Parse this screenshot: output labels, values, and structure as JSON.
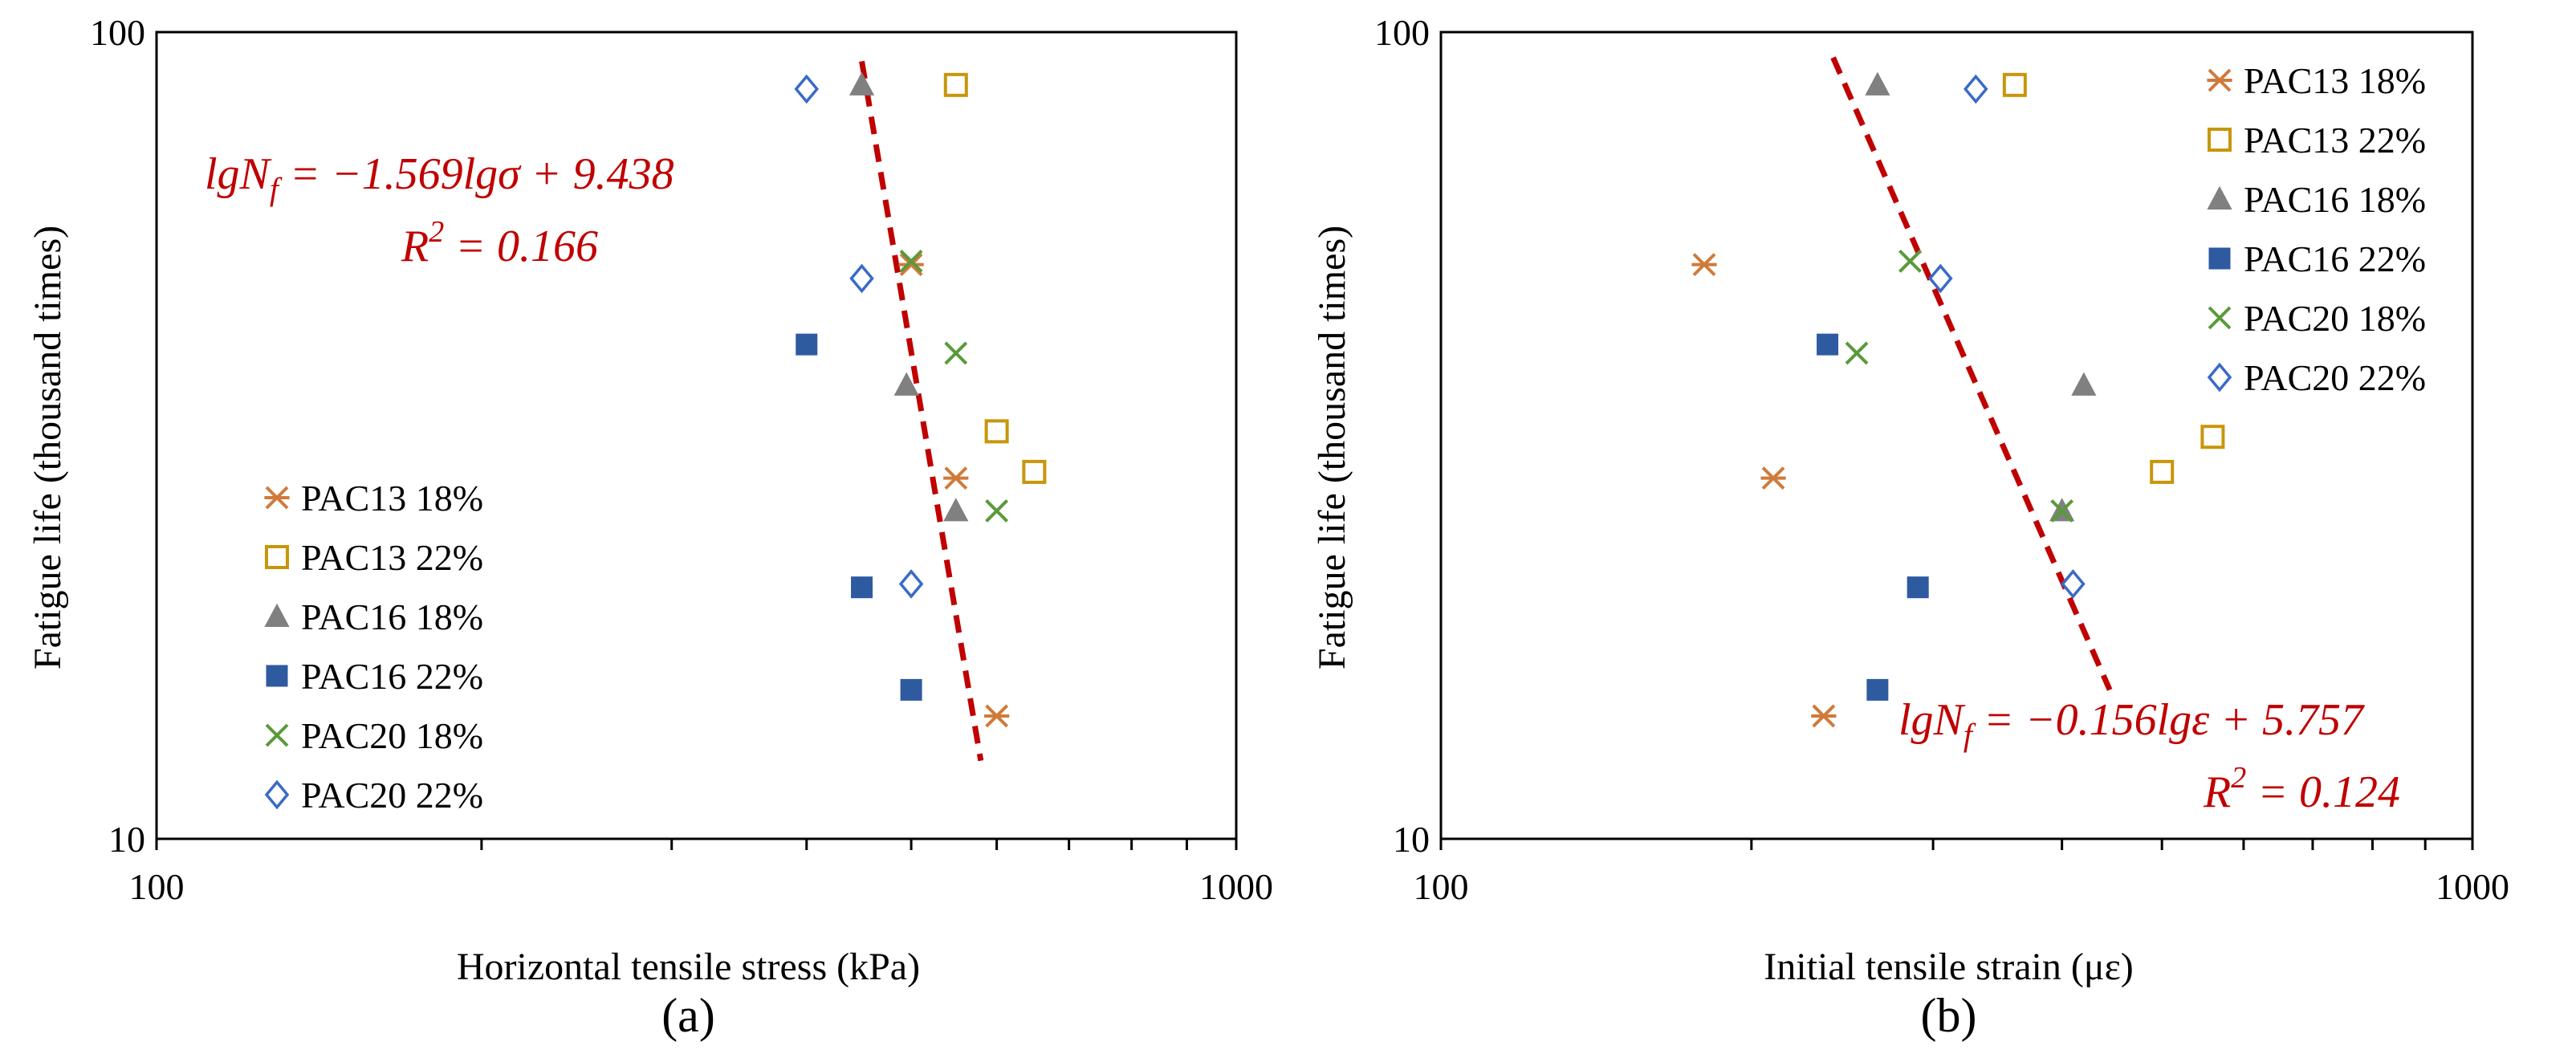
{
  "figure": {
    "panels": [
      "(a)",
      "(b)"
    ]
  },
  "series_styles": [
    {
      "name": "PAC13 18%",
      "marker": "asterisk",
      "color": "#d07a3a"
    },
    {
      "name": "PAC13 22%",
      "marker": "square-open",
      "color": "#c8960a"
    },
    {
      "name": "PAC16 18%",
      "marker": "triangle",
      "color": "#808080"
    },
    {
      "name": "PAC16 22%",
      "marker": "square",
      "color": "#2e5aa0"
    },
    {
      "name": "PAC20 18%",
      "marker": "x",
      "color": "#5a9a3a"
    },
    {
      "name": "PAC20 22%",
      "marker": "diamond-open",
      "color": "#3a6ac8"
    }
  ],
  "trend_color": "#c00000",
  "chart_data": [
    {
      "type": "scatter",
      "panel_label": "(a)",
      "xlabel": "Horizontal tensile stress (kPa)",
      "ylabel": "Fatigue life (thousand times)",
      "xscale": "log",
      "yscale": "log",
      "xlim": [
        100,
        1000
      ],
      "ylim": [
        10,
        100
      ],
      "x_ticks": [
        "100",
        "1000"
      ],
      "y_ticks": [
        "10",
        "100"
      ],
      "legend_position": "bottom-left",
      "equation": {
        "line1_left": "lgN",
        "line1_sub": "f",
        "line1_right": " = −1.569lgσ + 9.438",
        "line2_left": "R",
        "line2_sup": "2",
        "line2_right": " = 0.166"
      },
      "trend_line": {
        "x": [
          450,
          580
        ],
        "y": [
          92,
          12.5
        ]
      },
      "series": [
        {
          "name": "PAC13 18%",
          "points": [
            [
              500,
              51.5
            ],
            [
              550,
              28
            ],
            [
              600,
              14.2
            ]
          ]
        },
        {
          "name": "PAC13 22%",
          "points": [
            [
              550,
              86
            ],
            [
              600,
              32
            ],
            [
              650,
              28.5
            ]
          ]
        },
        {
          "name": "PAC16 18%",
          "points": [
            [
              450,
              86
            ],
            [
              495,
              36.5
            ],
            [
              550,
              25.5
            ]
          ]
        },
        {
          "name": "PAC16 22%",
          "points": [
            [
              400,
              41
            ],
            [
              450,
              20.5
            ],
            [
              500,
              15.3
            ]
          ]
        },
        {
          "name": "PAC20 18%",
          "points": [
            [
              500,
              52
            ],
            [
              550,
              40
            ],
            [
              600,
              25.5
            ]
          ]
        },
        {
          "name": "PAC20 22%",
          "points": [
            [
              400,
              85
            ],
            [
              450,
              49.5
            ],
            [
              500,
              20.7
            ]
          ]
        }
      ]
    },
    {
      "type": "scatter",
      "panel_label": "(b)",
      "xlabel": "Initial tensile strain (με)",
      "ylabel": "Fatigue life (thousand times)",
      "xscale": "log",
      "yscale": "log",
      "xlim": [
        100,
        1000
      ],
      "ylim": [
        10,
        100
      ],
      "x_ticks": [
        "100",
        "1000"
      ],
      "y_ticks": [
        "10",
        "100"
      ],
      "legend_position": "top-right",
      "equation": {
        "line1_left": "lgN",
        "line1_sub": "f",
        "line1_right": " = −0.156lgε + 5.757",
        "line2_left": "R",
        "line2_sup": "2",
        "line2_right": " = 0.124"
      },
      "trend_line": {
        "x": [
          240,
          445
        ],
        "y": [
          93,
          15.3
        ]
      },
      "series": [
        {
          "name": "PAC13 18%",
          "points": [
            [
              180,
              51.5
            ],
            [
              210,
              28
            ],
            [
              235,
              14.2
            ]
          ]
        },
        {
          "name": "PAC13 22%",
          "points": [
            [
              360,
              86
            ],
            [
              500,
              28.5
            ],
            [
              560,
              31.5
            ]
          ]
        },
        {
          "name": "PAC16 18%",
          "points": [
            [
              265,
              86
            ],
            [
              400,
              25.5
            ],
            [
              420,
              36.5
            ]
          ]
        },
        {
          "name": "PAC16 22%",
          "points": [
            [
              237,
              41
            ],
            [
              265,
              15.3
            ],
            [
              290,
              20.5
            ]
          ]
        },
        {
          "name": "PAC20 18%",
          "points": [
            [
              253,
              40
            ],
            [
              285,
              52
            ],
            [
              400,
              25.5
            ]
          ]
        },
        {
          "name": "PAC20 22%",
          "points": [
            [
              305,
              49.5
            ],
            [
              330,
              85
            ],
            [
              410,
              20.7
            ]
          ]
        }
      ]
    }
  ]
}
